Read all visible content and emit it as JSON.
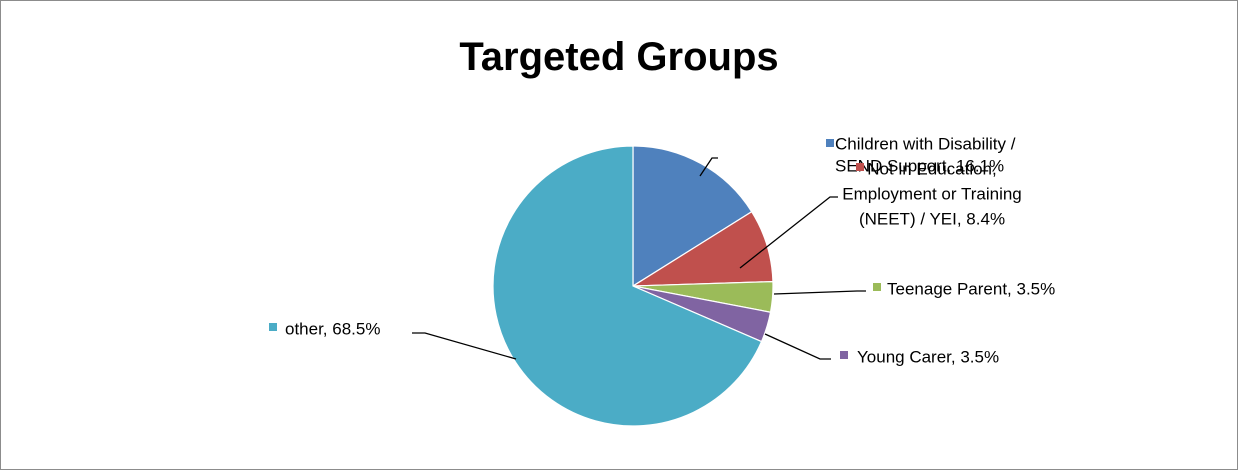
{
  "chart_data": {
    "type": "pie",
    "title": "Targeted Groups",
    "series": [
      {
        "name": "",
        "slices": [
          {
            "label": "Children with Disability / SEND Support",
            "value": 16.1,
            "display": "16.1%",
            "color": "#4F81BD",
            "label_lines": [
              "Children with Disability /",
              "SEND Support, 16.1%"
            ]
          },
          {
            "label": "Not in Education, Employment or Training (NEET) / YEI",
            "value": 8.4,
            "display": "8.4%",
            "color": "#C0504D",
            "label_lines": [
              "Not in Education,",
              "Employment or Training",
              "(NEET) / YEI, 8.4%"
            ]
          },
          {
            "label": "Teenage Parent",
            "value": 3.5,
            "display": "3.5%",
            "color": "#9BBB59",
            "label_lines": [
              "Teenage Parent, 3.5%"
            ]
          },
          {
            "label": "Young Carer",
            "value": 3.5,
            "display": "3.5%",
            "color": "#8064A2",
            "label_lines": [
              "Young Carer, 3.5%"
            ]
          },
          {
            "label": "other",
            "value": 68.5,
            "display": "68.5%",
            "color": "#4BACC6",
            "label_lines": [
              "other, 68.5%"
            ]
          }
        ]
      }
    ],
    "legend": "none (data labels with color markers)"
  }
}
